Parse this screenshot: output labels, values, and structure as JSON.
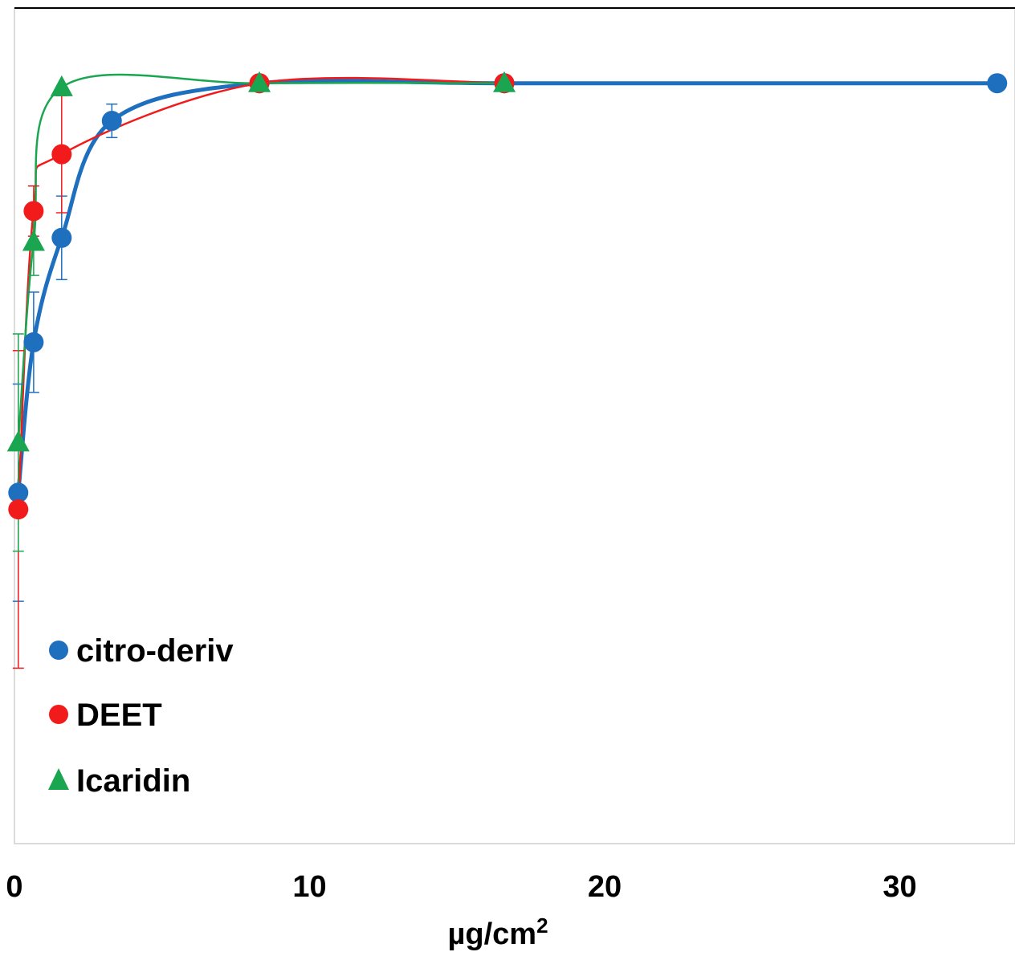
{
  "chart_data": {
    "type": "scatter",
    "xlabel": "µg/cm",
    "xlabel_superscript": "2",
    "xlim": [
      0,
      33.5
    ],
    "ylim": [
      0,
      100
    ],
    "xticks": [
      0,
      10,
      20,
      30
    ],
    "xtick_labels": [
      "0",
      "10",
      "20",
      "30"
    ],
    "grid": false,
    "legend_position": "bottom-left",
    "series": [
      {
        "name": "citro-deriv",
        "color": "#1f6fbf",
        "marker": "circle",
        "points": [
          {
            "x": 0.13,
            "y": 42,
            "err": 13
          },
          {
            "x": 0.65,
            "y": 60,
            "err": 6
          },
          {
            "x": 1.6,
            "y": 72.5,
            "err": 5
          },
          {
            "x": 3.3,
            "y": 86.5,
            "err": 2
          },
          {
            "x": 8.3,
            "y": 91,
            "err": 0
          },
          {
            "x": 16.6,
            "y": 91,
            "err": 0
          },
          {
            "x": 33.3,
            "y": 91,
            "err": 0
          }
        ]
      },
      {
        "name": "DEET",
        "color": "#f21b1b",
        "marker": "circle",
        "points": [
          {
            "x": 0.13,
            "y": 40,
            "err": 19
          },
          {
            "x": 0.65,
            "y": 75.7,
            "err": 3
          },
          {
            "x": 1.6,
            "y": 82.5,
            "err": 7
          },
          {
            "x": 8.3,
            "y": 91,
            "err": 0
          },
          {
            "x": 16.6,
            "y": 91,
            "err": 0
          }
        ]
      },
      {
        "name": "Icaridin",
        "color": "#1aa650",
        "marker": "triangle",
        "points": [
          {
            "x": 0.13,
            "y": 48,
            "err": 13
          },
          {
            "x": 0.65,
            "y": 72,
            "err": 4
          },
          {
            "x": 1.6,
            "y": 90.5,
            "err": 0
          },
          {
            "x": 8.3,
            "y": 91,
            "err": 0
          },
          {
            "x": 16.6,
            "y": 91,
            "err": 0
          }
        ]
      }
    ]
  }
}
